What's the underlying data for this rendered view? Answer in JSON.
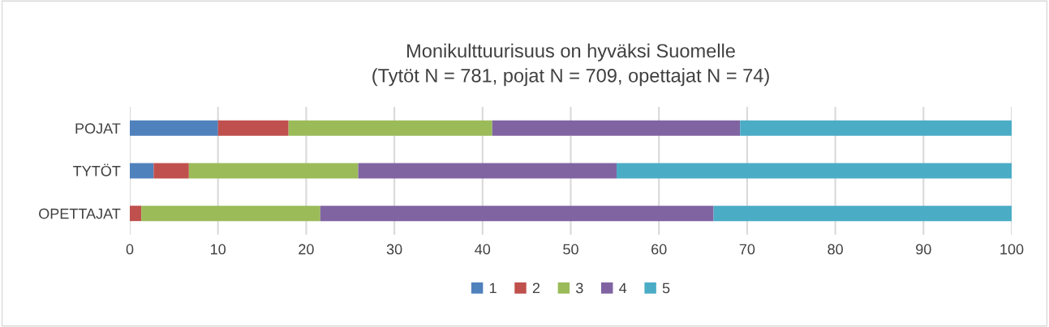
{
  "chart_data": {
    "type": "bar",
    "orientation": "horizontal",
    "stacked": true,
    "title": "Monikulttuurisuus on hyväksi Suomelle\n(Tytöt N = 781, pojat N = 709, opettajat N = 74)",
    "categories": [
      "POJAT",
      "TYTÖT",
      "OPETTAJAT"
    ],
    "series": [
      {
        "name": "1",
        "color": "#4f81bd",
        "values": [
          10.0,
          2.7,
          0
        ]
      },
      {
        "name": "2",
        "color": "#c0504d",
        "values": [
          8.0,
          4.0,
          1.3
        ]
      },
      {
        "name": "3",
        "color": "#9bbb59",
        "values": [
          23.1,
          19.2,
          20.3
        ]
      },
      {
        "name": "4",
        "color": "#8064a2",
        "values": [
          28.1,
          29.3,
          44.6
        ]
      },
      {
        "name": "5",
        "color": "#4bacc6",
        "values": [
          30.8,
          44.8,
          33.8
        ]
      }
    ],
    "xlim": [
      0,
      100
    ],
    "xticks": [
      0,
      10,
      20,
      30,
      40,
      50,
      60,
      70,
      80,
      90,
      100
    ],
    "grid": "x",
    "legend": "bottom"
  }
}
